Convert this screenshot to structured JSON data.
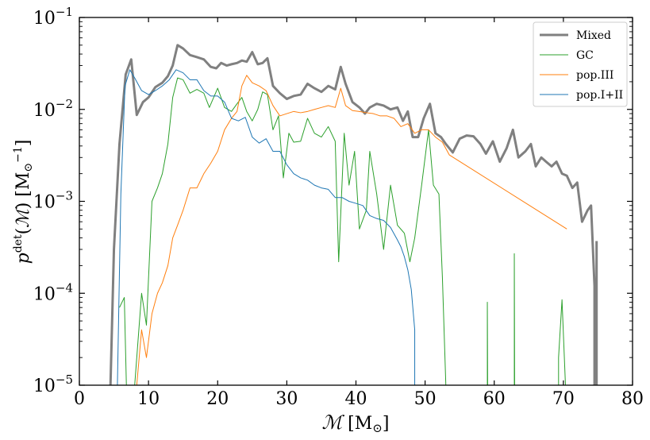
{
  "chart_data": {
    "type": "line",
    "xlabel": "𝓜 [M⊙]",
    "ylabel": "p^det(𝓜) [M⊙^-1]",
    "xlim": [
      0,
      80
    ],
    "ylim": [
      1e-05,
      0.1
    ],
    "yscale": "log",
    "legend_position": "top-right",
    "xticks": [
      "0",
      "10",
      "20",
      "30",
      "40",
      "50",
      "60",
      "70",
      "80"
    ],
    "yticks": [
      {
        "value": 1e-05,
        "base": "10",
        "exp": "−5"
      },
      {
        "value": 0.0001,
        "base": "10",
        "exp": "−4"
      },
      {
        "value": 0.001,
        "base": "10",
        "exp": "−3"
      },
      {
        "value": 0.01,
        "base": "10",
        "exp": "−2"
      },
      {
        "value": 0.1,
        "base": "10",
        "exp": "−1"
      }
    ],
    "series": [
      {
        "name": "Mixed",
        "color": "#808080",
        "width": 3,
        "points": [
          [
            4.5,
            1e-05
          ],
          [
            5.0,
            0.0003
          ],
          [
            5.8,
            0.0042
          ],
          [
            6.7,
            0.024
          ],
          [
            7.5,
            0.035
          ],
          [
            8.3,
            0.0087
          ],
          [
            9.2,
            0.012
          ],
          [
            10.0,
            0.0135
          ],
          [
            11.0,
            0.0175
          ],
          [
            12.0,
            0.0195
          ],
          [
            12.8,
            0.023
          ],
          [
            13.5,
            0.03
          ],
          [
            14.2,
            0.05
          ],
          [
            15.0,
            0.046
          ],
          [
            16.0,
            0.039
          ],
          [
            17.0,
            0.037
          ],
          [
            18.0,
            0.035
          ],
          [
            19.0,
            0.029
          ],
          [
            19.8,
            0.028
          ],
          [
            20.5,
            0.032
          ],
          [
            21.3,
            0.03
          ],
          [
            22.0,
            0.031
          ],
          [
            22.8,
            0.032
          ],
          [
            23.5,
            0.034
          ],
          [
            24.2,
            0.033
          ],
          [
            25.0,
            0.042
          ],
          [
            25.8,
            0.031
          ],
          [
            26.5,
            0.032
          ],
          [
            27.2,
            0.036
          ],
          [
            28.0,
            0.018
          ],
          [
            29.0,
            0.015
          ],
          [
            30.0,
            0.013
          ],
          [
            31.0,
            0.014
          ],
          [
            32.0,
            0.0145
          ],
          [
            33.0,
            0.019
          ],
          [
            34.0,
            0.017
          ],
          [
            35.0,
            0.0155
          ],
          [
            36.0,
            0.018
          ],
          [
            37.0,
            0.0165
          ],
          [
            37.8,
            0.029
          ],
          [
            38.5,
            0.019
          ],
          [
            39.5,
            0.012
          ],
          [
            40.5,
            0.0105
          ],
          [
            41.3,
            0.009
          ],
          [
            42.0,
            0.0105
          ],
          [
            43.0,
            0.0115
          ],
          [
            44.0,
            0.011
          ],
          [
            45.0,
            0.01
          ],
          [
            46.0,
            0.0105
          ],
          [
            46.8,
            0.0075
          ],
          [
            47.5,
            0.0095
          ],
          [
            48.2,
            0.005
          ],
          [
            49.0,
            0.005
          ],
          [
            49.8,
            0.008
          ],
          [
            50.7,
            0.0115
          ],
          [
            51.5,
            0.0055
          ],
          [
            52.3,
            0.005
          ],
          [
            53.0,
            0.0042
          ],
          [
            54.0,
            0.0034
          ],
          [
            55.0,
            0.0048
          ],
          [
            56.0,
            0.0052
          ],
          [
            57.0,
            0.0051
          ],
          [
            58.0,
            0.0042
          ],
          [
            58.8,
            0.0033
          ],
          [
            59.8,
            0.0045
          ],
          [
            60.8,
            0.0027
          ],
          [
            61.8,
            0.0038
          ],
          [
            62.7,
            0.006
          ],
          [
            63.5,
            0.003
          ],
          [
            64.5,
            0.0035
          ],
          [
            65.3,
            0.0042
          ],
          [
            66.0,
            0.0024
          ],
          [
            66.8,
            0.003
          ],
          [
            67.5,
            0.0027
          ],
          [
            68.3,
            0.0024
          ],
          [
            69.0,
            0.0027
          ],
          [
            69.8,
            0.002
          ],
          [
            70.5,
            0.0019
          ],
          [
            71.3,
            0.0014
          ],
          [
            72.0,
            0.0016
          ],
          [
            72.7,
            0.0006
          ],
          [
            73.5,
            0.0008
          ],
          [
            74.0,
            0.0009
          ],
          [
            74.5,
            0.00012
          ],
          [
            74.5,
            1e-05
          ],
          [
            74.8,
            1e-05
          ],
          [
            74.8,
            0.00037
          ]
        ]
      },
      {
        "name": "GC",
        "color": "#2ca02c",
        "width": 1,
        "points": [
          [
            5.8,
            7e-05
          ],
          [
            6.5,
            9e-05
          ],
          [
            6.8,
            1e-05
          ],
          [
            8.0,
            1e-05
          ],
          [
            9.0,
            0.0001
          ],
          [
            9.7,
            4.5e-05
          ],
          [
            10.5,
            0.001
          ],
          [
            11.3,
            0.0014
          ],
          [
            12.0,
            0.002
          ],
          [
            12.8,
            0.0042
          ],
          [
            13.5,
            0.0135
          ],
          [
            14.2,
            0.022
          ],
          [
            15.0,
            0.021
          ],
          [
            16.0,
            0.015
          ],
          [
            17.0,
            0.0165
          ],
          [
            18.0,
            0.015
          ],
          [
            18.8,
            0.0105
          ],
          [
            20.0,
            0.017
          ],
          [
            21.0,
            0.0105
          ],
          [
            22.0,
            0.0095
          ],
          [
            22.8,
            0.0115
          ],
          [
            23.5,
            0.0135
          ],
          [
            24.2,
            0.0095
          ],
          [
            25.0,
            0.0075
          ],
          [
            25.8,
            0.01
          ],
          [
            26.5,
            0.0155
          ],
          [
            27.2,
            0.0145
          ],
          [
            28.0,
            0.006
          ],
          [
            28.8,
            0.0085
          ],
          [
            29.5,
            0.0018
          ],
          [
            30.3,
            0.0055
          ],
          [
            31.0,
            0.0044
          ],
          [
            32.0,
            0.0045
          ],
          [
            33.0,
            0.008
          ],
          [
            34.0,
            0.0055
          ],
          [
            35.0,
            0.005
          ],
          [
            36.0,
            0.0065
          ],
          [
            37.0,
            0.0045
          ],
          [
            37.5,
            0.00022
          ],
          [
            38.3,
            0.0055
          ],
          [
            39.0,
            0.0015
          ],
          [
            39.8,
            0.0035
          ],
          [
            40.5,
            0.0005
          ],
          [
            41.5,
            0.0008
          ],
          [
            42.0,
            0.0035
          ],
          [
            43.0,
            0.0012
          ],
          [
            44.0,
            0.0003
          ],
          [
            45.0,
            0.0015
          ],
          [
            46.0,
            0.00055
          ],
          [
            47.0,
            0.00045
          ],
          [
            47.8,
            0.00022
          ],
          [
            48.5,
            0.0004
          ],
          [
            49.5,
            0.0015
          ],
          [
            50.5,
            0.006
          ],
          [
            51.2,
            0.0015
          ],
          [
            52.0,
            0.0012
          ],
          [
            52.5,
            0.00015
          ],
          [
            53.0,
            1e-05
          ]
        ]
      },
      {
        "name": "pop.III",
        "color": "#ff7f0e",
        "width": 1,
        "points": [
          [
            8.3,
            1e-05
          ],
          [
            9.0,
            4e-05
          ],
          [
            9.7,
            2e-05
          ],
          [
            10.5,
            6e-05
          ],
          [
            11.3,
            0.0001
          ],
          [
            12.0,
            0.00013
          ],
          [
            12.8,
            0.0002
          ],
          [
            13.5,
            0.0004
          ],
          [
            14.2,
            0.00055
          ],
          [
            15.0,
            0.0008
          ],
          [
            16.0,
            0.0014
          ],
          [
            17.0,
            0.0014
          ],
          [
            18.0,
            0.002
          ],
          [
            19.0,
            0.0026
          ],
          [
            20.0,
            0.0035
          ],
          [
            21.0,
            0.006
          ],
          [
            22.0,
            0.008
          ],
          [
            22.8,
            0.0095
          ],
          [
            23.5,
            0.018
          ],
          [
            24.2,
            0.0235
          ],
          [
            25.0,
            0.0195
          ],
          [
            26.0,
            0.018
          ],
          [
            27.0,
            0.016
          ],
          [
            28.0,
            0.011
          ],
          [
            29.0,
            0.0085
          ],
          [
            30.0,
            0.009
          ],
          [
            31.0,
            0.0095
          ],
          [
            32.0,
            0.0092
          ],
          [
            33.0,
            0.0095
          ],
          [
            34.0,
            0.01
          ],
          [
            35.0,
            0.0105
          ],
          [
            36.0,
            0.011
          ],
          [
            37.0,
            0.0105
          ],
          [
            37.8,
            0.017
          ],
          [
            38.5,
            0.011
          ],
          [
            39.5,
            0.0097
          ],
          [
            40.5,
            0.0095
          ],
          [
            41.5,
            0.0092
          ],
          [
            42.5,
            0.009
          ],
          [
            43.5,
            0.0085
          ],
          [
            44.5,
            0.0085
          ],
          [
            45.5,
            0.008
          ],
          [
            46.5,
            0.0065
          ],
          [
            47.5,
            0.007
          ],
          [
            48.5,
            0.0055
          ],
          [
            49.5,
            0.006
          ],
          [
            50.5,
            0.006
          ],
          [
            51.5,
            0.005
          ],
          [
            52.5,
            0.0044
          ],
          [
            53.5,
            0.0032
          ],
          [
            70.5,
            0.0005
          ]
        ]
      },
      {
        "name": "pop.I+II",
        "color": "#1f77b4",
        "width": 1,
        "points": [
          [
            5.5,
            1e-05
          ],
          [
            6.0,
            0.0012
          ],
          [
            6.6,
            0.018
          ],
          [
            7.3,
            0.027
          ],
          [
            8.0,
            0.022
          ],
          [
            9.0,
            0.016
          ],
          [
            10.0,
            0.0145
          ],
          [
            11.0,
            0.016
          ],
          [
            12.0,
            0.018
          ],
          [
            13.0,
            0.021
          ],
          [
            14.0,
            0.027
          ],
          [
            15.0,
            0.025
          ],
          [
            16.0,
            0.021
          ],
          [
            17.0,
            0.021
          ],
          [
            18.0,
            0.016
          ],
          [
            19.0,
            0.014
          ],
          [
            20.0,
            0.014
          ],
          [
            21.0,
            0.012
          ],
          [
            22.0,
            0.008
          ],
          [
            23.0,
            0.0075
          ],
          [
            24.0,
            0.0082
          ],
          [
            25.0,
            0.005
          ],
          [
            26.0,
            0.0043
          ],
          [
            27.0,
            0.0048
          ],
          [
            28.0,
            0.0035
          ],
          [
            29.0,
            0.0035
          ],
          [
            30.0,
            0.0025
          ],
          [
            31.0,
            0.002
          ],
          [
            32.0,
            0.0018
          ],
          [
            33.0,
            0.0017
          ],
          [
            34.0,
            0.0015
          ],
          [
            35.0,
            0.0014
          ],
          [
            36.0,
            0.00135
          ],
          [
            37.0,
            0.0011
          ],
          [
            38.0,
            0.0011
          ],
          [
            39.0,
            0.001
          ],
          [
            40.0,
            0.00095
          ],
          [
            41.0,
            0.0009
          ],
          [
            42.0,
            0.0007
          ],
          [
            43.0,
            0.00065
          ],
          [
            44.0,
            0.00062
          ],
          [
            45.0,
            0.00052
          ],
          [
            46.0,
            0.00038
          ],
          [
            46.5,
            0.00032
          ],
          [
            47.0,
            0.00025
          ],
          [
            47.5,
            0.00018
          ],
          [
            48.0,
            0.00011
          ],
          [
            48.5,
            4e-05
          ],
          [
            48.5,
            1e-05
          ]
        ]
      },
      {
        "name": "",
        "color": "#2ca02c",
        "width": 1,
        "points": [
          [
            59.0,
            1e-05
          ],
          [
            59.0,
            8e-05
          ],
          [
            59.05,
            1e-05
          ]
        ]
      },
      {
        "name": "",
        "color": "#2ca02c",
        "width": 1,
        "points": [
          [
            62.9,
            1e-05
          ],
          [
            62.9,
            0.00027
          ],
          [
            62.95,
            1e-05
          ]
        ]
      },
      {
        "name": "",
        "color": "#2ca02c",
        "width": 1,
        "points": [
          [
            69.3,
            1e-05
          ],
          [
            69.3,
            2e-05
          ],
          [
            69.8,
            8.5e-05
          ],
          [
            70.3,
            1e-05
          ]
        ]
      }
    ]
  }
}
